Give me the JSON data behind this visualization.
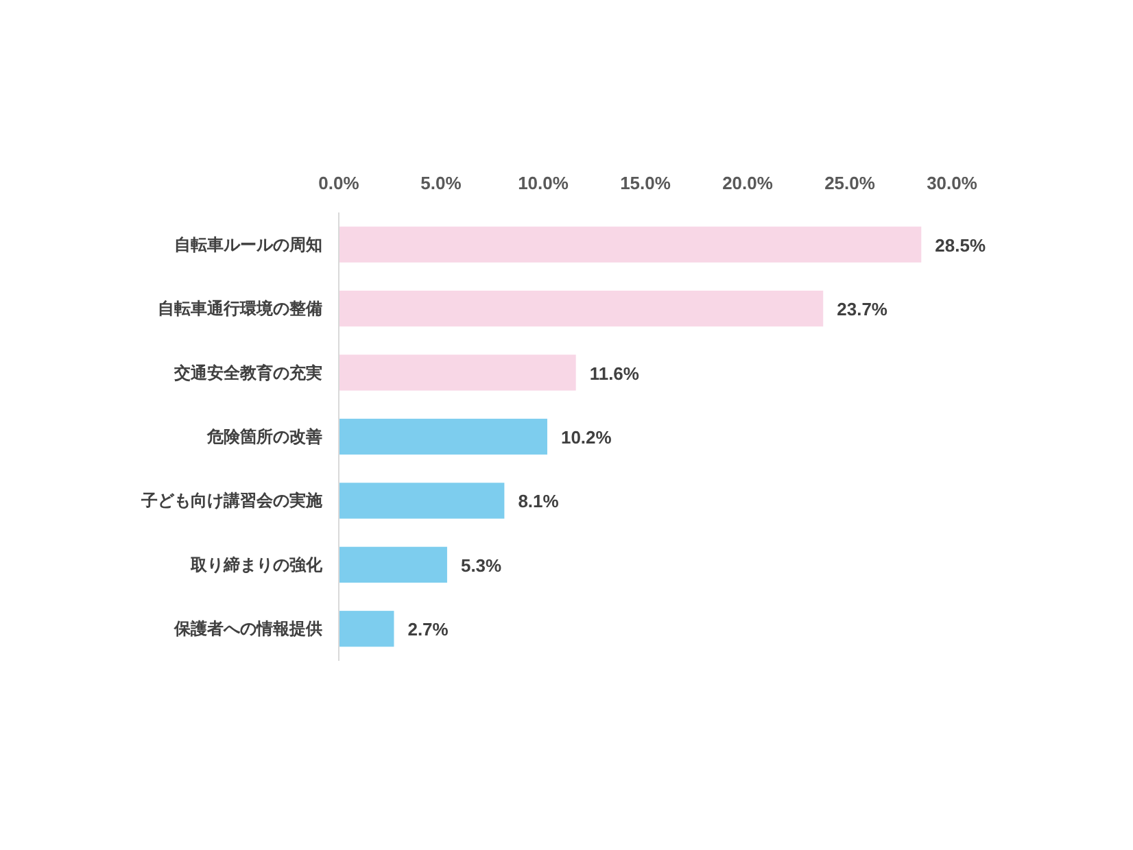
{
  "chart_data": {
    "type": "bar",
    "orientation": "horizontal",
    "categories": [
      "自転車ルールの周知",
      "自転車通行環境の整備",
      "交通安全教育の充実",
      "危険箇所の改善",
      "子ども向け講習会の実施",
      "取り締まりの強化",
      "保護者への情報提供"
    ],
    "values": [
      28.5,
      23.7,
      11.6,
      10.2,
      8.1,
      5.3,
      2.7
    ],
    "colors": [
      "#f8d7e6",
      "#f8d7e6",
      "#f8d7e6",
      "#7dcdee",
      "#7dcdee",
      "#7dcdee",
      "#7dcdee"
    ],
    "value_labels": [
      "28.5%",
      "23.7%",
      "11.6%",
      "10.2%",
      "8.1%",
      "5.3%",
      "2.7%"
    ],
    "xlim": [
      0,
      30
    ],
    "xticks": [
      {
        "value": 0,
        "label": "0.0%"
      },
      {
        "value": 5,
        "label": "5.0%"
      },
      {
        "value": 10,
        "label": "10.0%"
      },
      {
        "value": 15,
        "label": "15.0%"
      },
      {
        "value": 20,
        "label": "20.0%"
      },
      {
        "value": 25,
        "label": "25.0%"
      },
      {
        "value": 30,
        "label": "30.0%"
      }
    ],
    "grid": false
  }
}
